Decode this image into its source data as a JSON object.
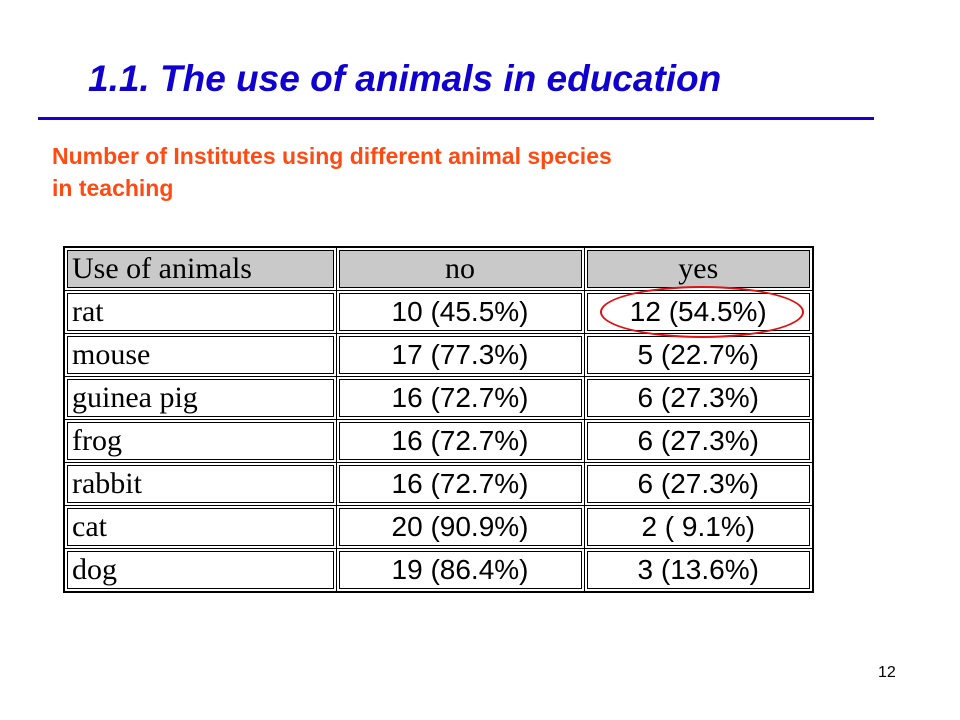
{
  "slide": {
    "title": "1.1. The use of animals in education",
    "subtitle_line1": "Number of Institutes using different animal species",
    "subtitle_line2": "in teaching",
    "page_number": "12"
  },
  "table": {
    "headers": [
      "Use of animals",
      "no",
      "yes"
    ],
    "rows": [
      {
        "animal": "rat",
        "no": "10 (45.5%)",
        "yes": "12 (54.5%)"
      },
      {
        "animal": "mouse",
        "no": "17 (77.3%)",
        "yes": "5 (22.7%)"
      },
      {
        "animal": "guinea pig",
        "no": "16 (72.7%)",
        "yes": "6 (27.3%)"
      },
      {
        "animal": "frog",
        "no": "16 (72.7%)",
        "yes": "6 (27.3%)"
      },
      {
        "animal": "rabbit",
        "no": "16 (72.7%)",
        "yes": "6 (27.3%)"
      },
      {
        "animal": "cat",
        "no": "20 (90.9%)",
        "yes": "2 ( 9.1%)"
      },
      {
        "animal": "dog",
        "no": "19 (86.4%)",
        "yes": "3 (13.6%)"
      }
    ]
  },
  "colors": {
    "title": "#0f00cf",
    "subtitle": "#ff4a12",
    "header_fill": "#c9c9c9",
    "highlight": "#e01010"
  }
}
